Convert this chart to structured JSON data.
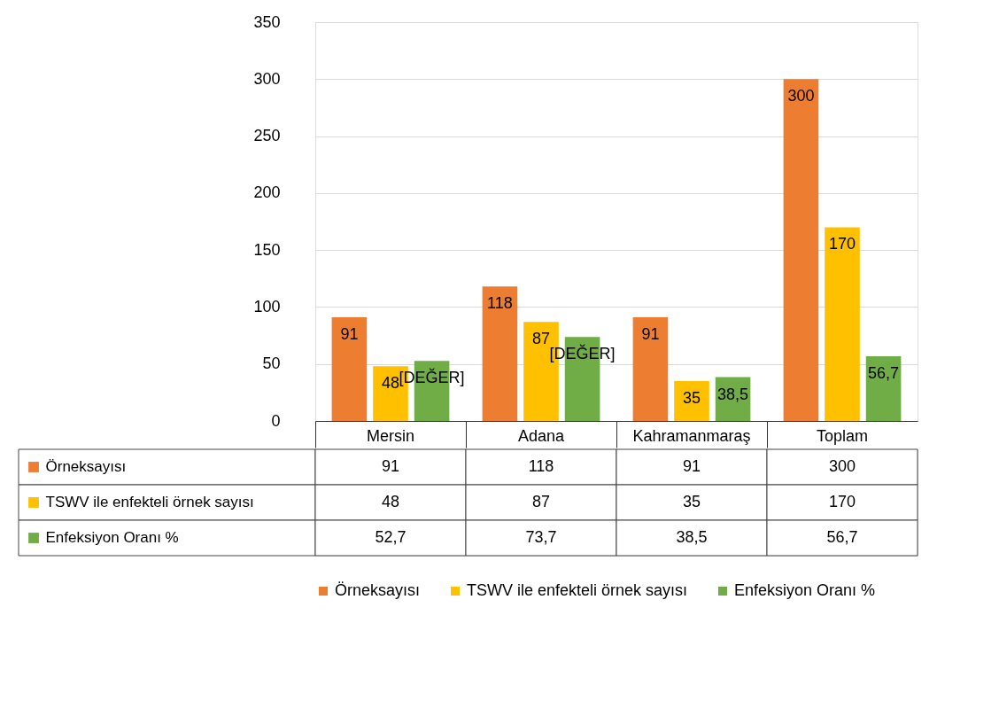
{
  "chart_data": {
    "type": "bar",
    "categories": [
      "Mersin",
      "Adana",
      "Kahramanmaraş",
      "Toplam"
    ],
    "series": [
      {
        "name": "Örneksayısı",
        "color": "#ed7d31",
        "values": [
          91,
          118,
          91,
          300
        ],
        "value_labels": [
          "91",
          "118",
          "91",
          "300"
        ]
      },
      {
        "name": "TSWV ile enfekteli örnek sayısı",
        "color": "#ffc000",
        "values": [
          48,
          87,
          35,
          170
        ],
        "value_labels": [
          "48",
          "87",
          "35",
          "170"
        ]
      },
      {
        "name": "Enfeksiyon Oranı %",
        "color": "#70ad47",
        "values": [
          52.7,
          73.7,
          38.5,
          56.7
        ],
        "value_labels": [
          "[DEĞER]",
          "[DEĞER]",
          "38,5",
          "56,7"
        ]
      }
    ],
    "ylim": [
      0,
      350
    ],
    "yticks": [
      0,
      50,
      100,
      150,
      200,
      250,
      300,
      350
    ],
    "grid": "y",
    "legend": "bottom",
    "annotations": [
      "91",
      "118",
      "91",
      "300",
      "48",
      "87",
      "35",
      "170",
      "52,7",
      "73,7",
      "38,5",
      "56,7"
    ]
  }
}
